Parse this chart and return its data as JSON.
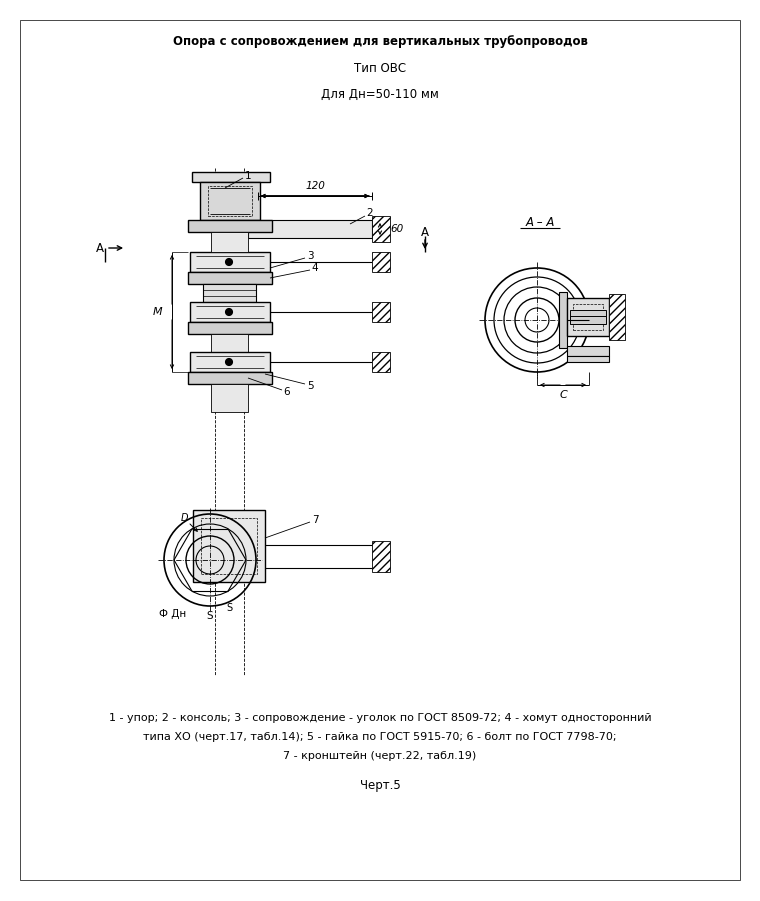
{
  "title_line1": "Опора с сопровождением для вертикальных трубопроводов",
  "title_line2": "Тип ОВС",
  "title_line3": "Для Дн=50-110 мм",
  "caption_line1": "1 - упор; 2 - консоль; 3 - сопровождение - уголок по ГОСТ 8509-72; 4 - хомут односторонний",
  "caption_line2": "типа ХО (черт.17, табл.14); 5 - гайка по ГОСТ 5915-70; 6 - болт по ГОСТ 7798-70;",
  "caption_line3": "7 - кронштейн (черт.22, табл.19)",
  "chert": "Черт.5",
  "bg_color": "#ffffff",
  "line_color": "#000000"
}
